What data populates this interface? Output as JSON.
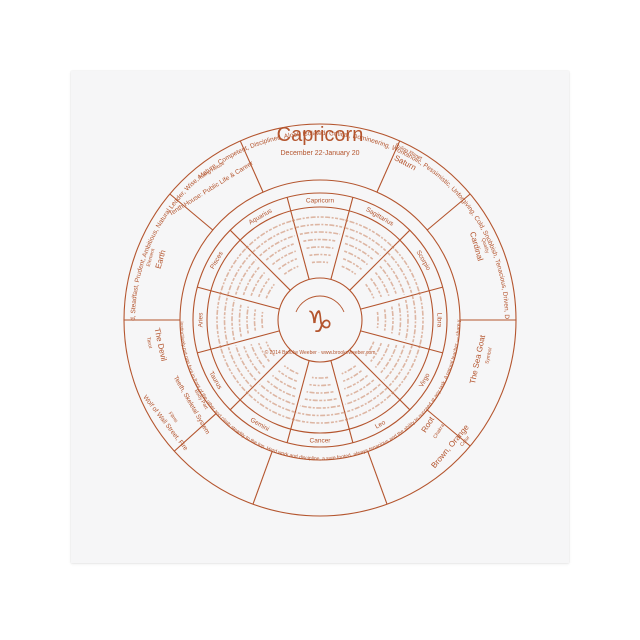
{
  "title": "Capricorn",
  "dates": "December 22-January 20",
  "glyph": "♑",
  "ruling_planet_caption": "Ruling Planet",
  "ruling_planet": "Saturn",
  "ruling_house_caption": "Ruling House",
  "ruling_house": "Tenth House: Public Life & Career",
  "quality_caption": "Quality",
  "quality": "Cardinal",
  "element_caption": "Element",
  "element": "Earth",
  "symbol_caption": "Symbol",
  "symbol": "The Sea Goat",
  "tarot_caption": "Tarot",
  "tarot": "The Devil",
  "chakra_caption": "Chakra",
  "chakra": "Root",
  "body_caption": "Body Part",
  "body": "Teeth, Skeletal System",
  "color_caption": "Color",
  "color": "Brown, Orange",
  "films_caption": "Films",
  "films": "Wolf of Wall Street, Fire",
  "traits_positive": "Tenacious, Family Oriented, Grounded, Steadfast, Prudent, Ambitious, Natural Leader, Wise, Mature, Competent, Disciplined, Aloof, Isolated, Critical, Domineering, Workaholic, Pessimistic, Unforgiving, Cold, Snobbish, Tenacious, Driven, Dedicated, Focused, Resourceful, Wise",
  "signs": [
    "Capricorn",
    "Sagittarius",
    "Scorpio",
    "Libra",
    "Virgo",
    "Leo",
    "Cancer",
    "Gemini",
    "Taurus",
    "Aries",
    "Pisces",
    "Aquarius"
  ],
  "copyright": "© 2014 Brooke Weeber · www.brookeweeber.com",
  "bottom_paragraph": "Capricorn is one of the hardest working signs of the zodiac. Like the Goat, you instinctively put one foot in front of the other and climb steadily to the top. Hard work and discipline, a sure footed, always tenacious and the ability to succeed at any task. A natural teacher — share your wisdom with others. Capricorn is a natural leader and loves to plan ahead."
}
